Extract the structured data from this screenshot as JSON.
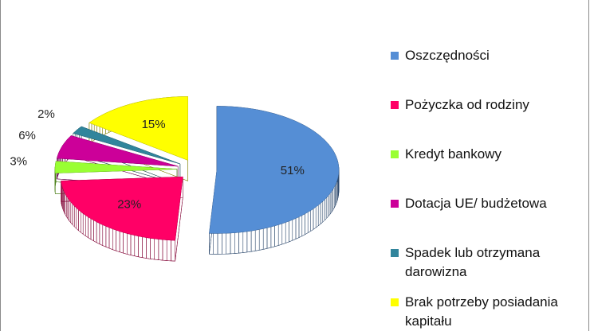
{
  "chart_data": {
    "type": "pie3d",
    "categories": [
      "Oszczędności",
      "Pożyczka od rodziny",
      "Kredyt bankowy",
      "Dotacja UE/ budżetowa",
      "Spadek lub otrzymana darowizna",
      "Brak potrzeby posiadania kapitału"
    ],
    "values": [
      51,
      23,
      3,
      6,
      2,
      15
    ],
    "value_labels": [
      "51%",
      "23%",
      "3%",
      "6%",
      "2%",
      "15%"
    ],
    "colors": [
      "#558ed5",
      "#ff0066",
      "#99ff33",
      "#cc0099",
      "#31859c",
      "#ffff00"
    ],
    "legend": "right"
  }
}
